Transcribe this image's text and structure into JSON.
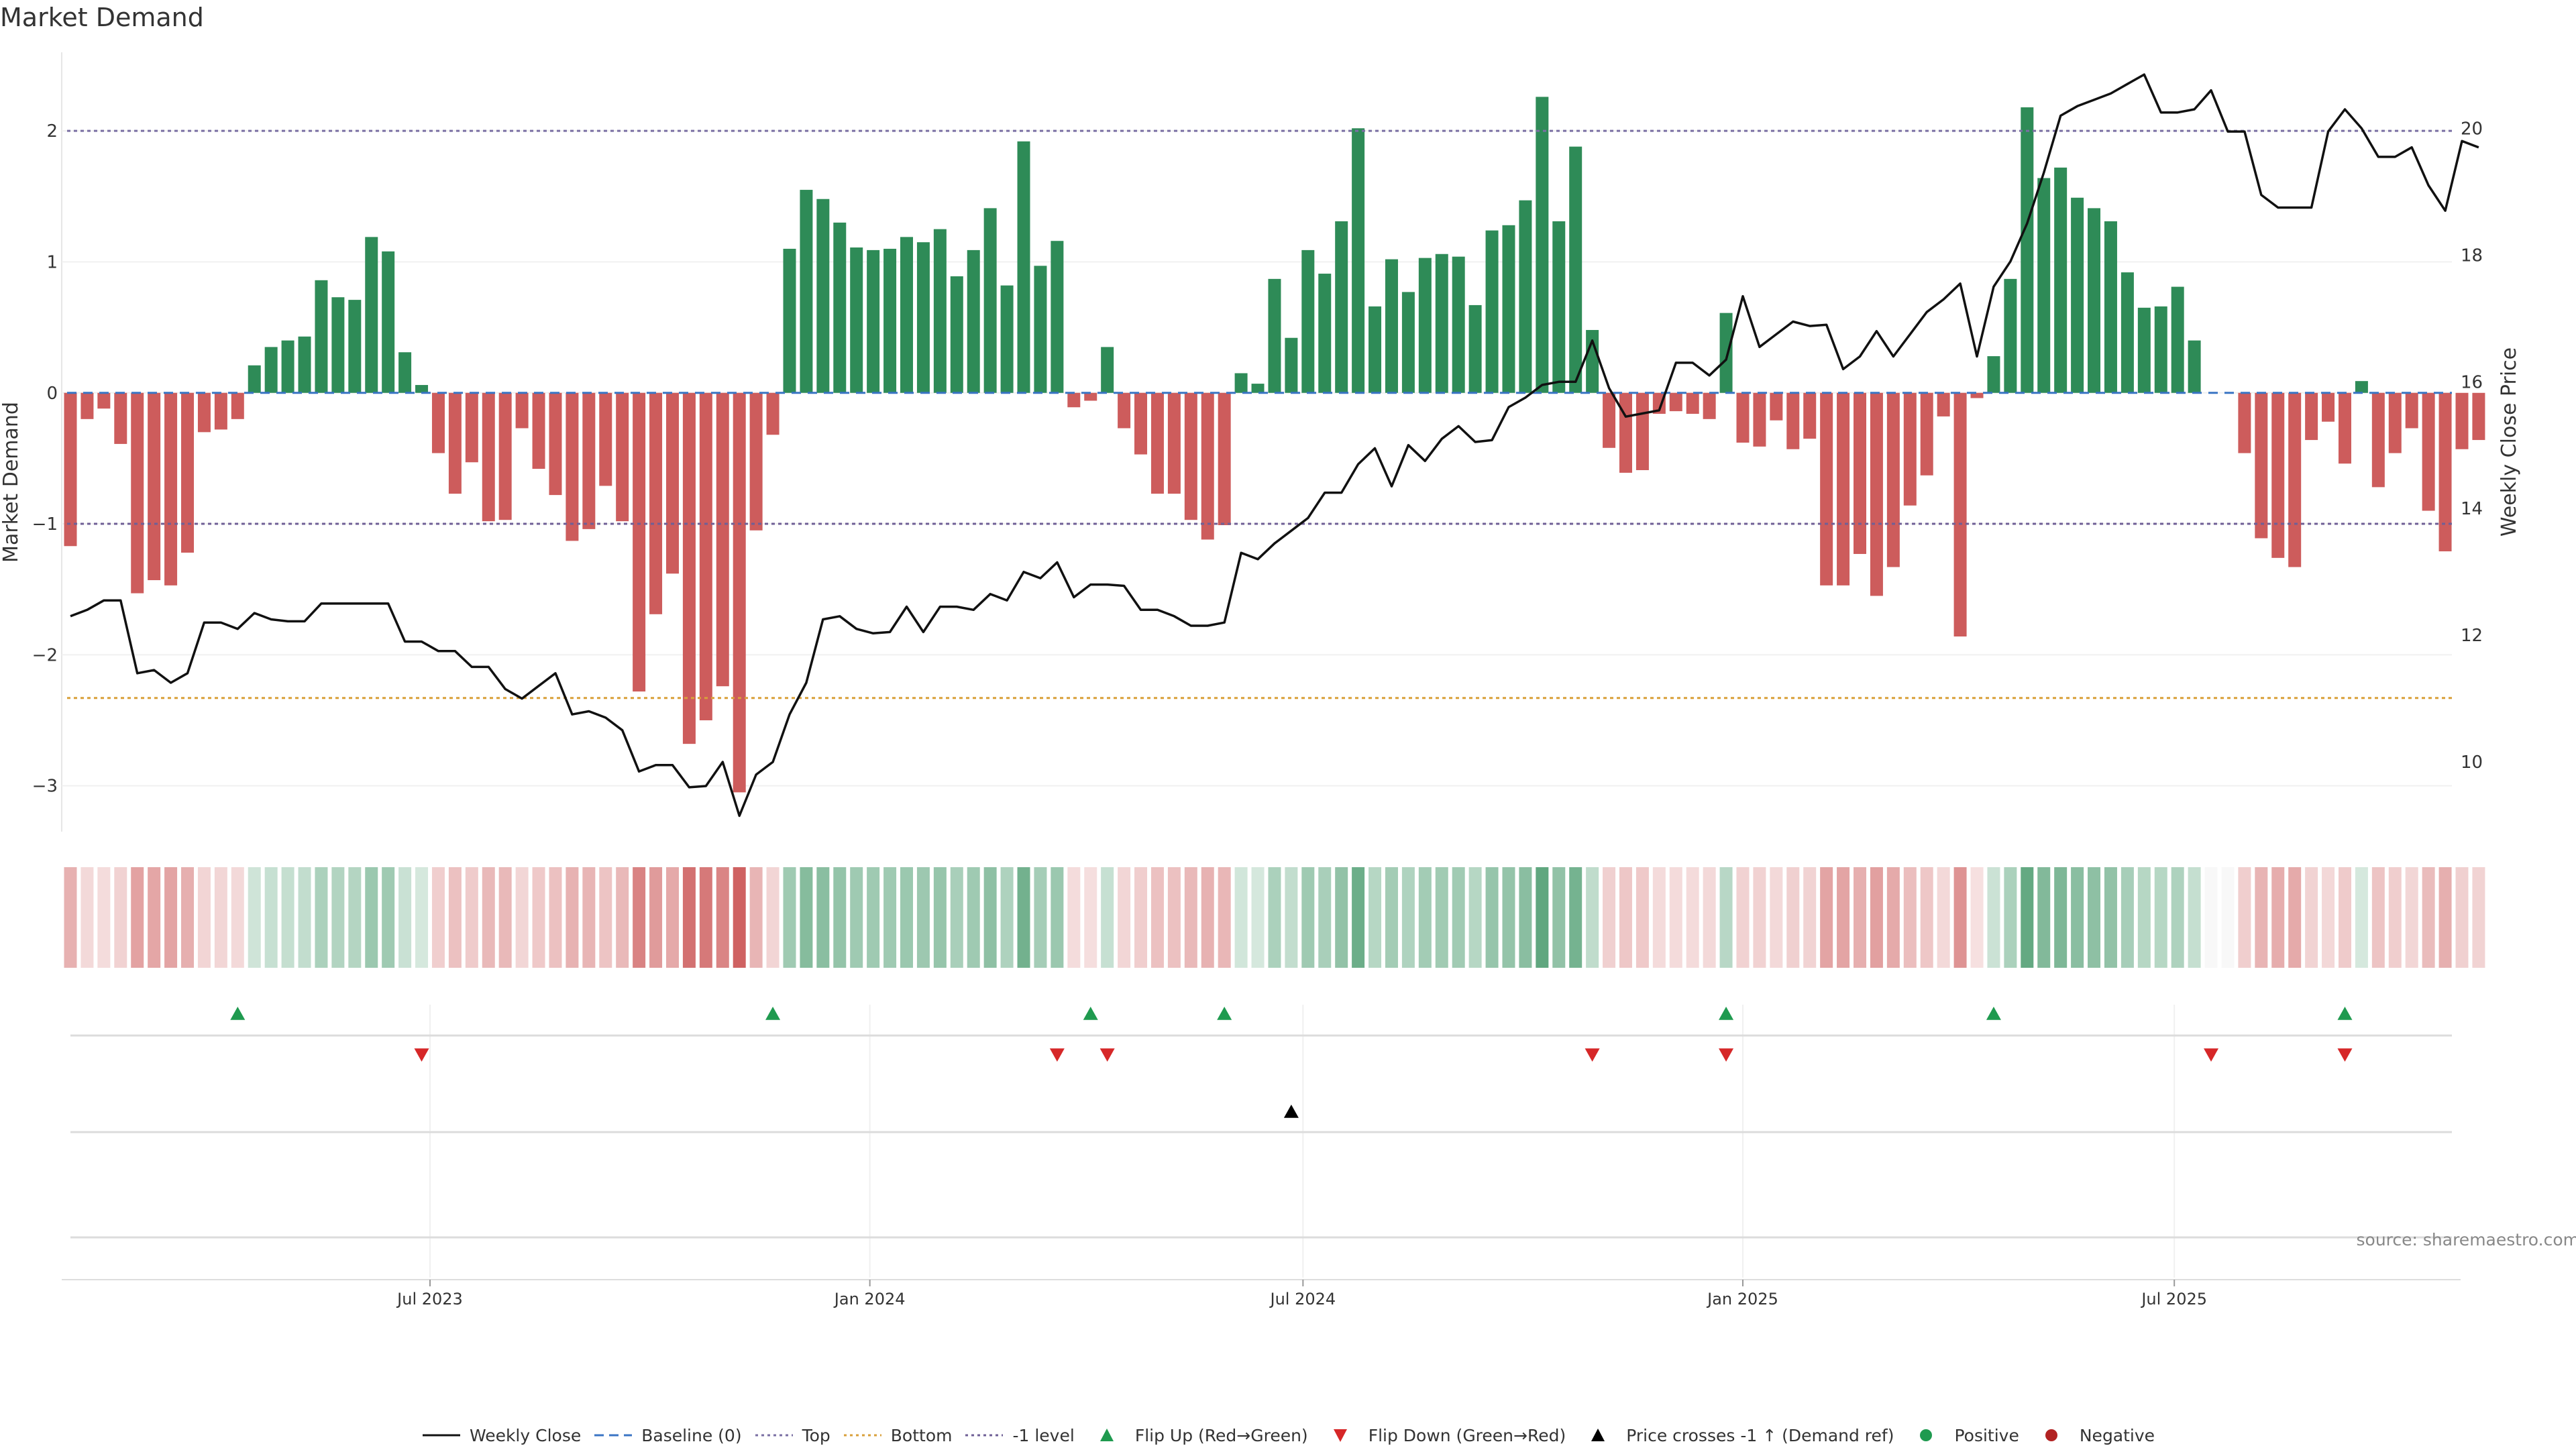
{
  "title": "Market Demand",
  "source": "source: sharemaestro.com",
  "chart_data": {
    "type": "bar",
    "y_left_label": "Market Demand",
    "y_right_label": "Weekly Close Price",
    "y_left_range": [
      -3.35,
      2.6
    ],
    "y_right_range": [
      8.9,
      21.2
    ],
    "y_left_ticks": [
      -3,
      -2,
      -1,
      0,
      1,
      2
    ],
    "y_right_ticks": [
      10,
      12,
      14,
      16,
      18,
      20
    ],
    "x_ticks": [
      {
        "label": "Jul 2023",
        "index": 21.5
      },
      {
        "label": "Jan 2024",
        "index": 47.8
      },
      {
        "label": "Jul 2024",
        "index": 73.7
      },
      {
        "label": "Jan 2025",
        "index": 100.0
      },
      {
        "label": "Jul 2025",
        "index": 125.8
      }
    ],
    "reference_lines": {
      "top": 2.0,
      "bottom": -2.33,
      "minus_one": -1.0,
      "baseline": 0
    },
    "demand": [
      -1.17,
      -0.2,
      -0.12,
      -0.39,
      -1.53,
      -1.43,
      -1.47,
      -1.22,
      -0.3,
      -0.28,
      -0.2,
      0.21,
      0.35,
      0.4,
      0.43,
      0.86,
      0.73,
      0.71,
      1.19,
      1.08,
      0.31,
      0.06,
      -0.46,
      -0.77,
      -0.53,
      -0.98,
      -0.97,
      -0.27,
      -0.58,
      -0.78,
      -1.13,
      -1.04,
      -0.71,
      -0.98,
      -2.28,
      -1.69,
      -1.38,
      -2.68,
      -2.5,
      -2.24,
      -3.05,
      -1.05,
      -0.32,
      1.1,
      1.55,
      1.48,
      1.3,
      1.11,
      1.09,
      1.1,
      1.19,
      1.15,
      1.25,
      0.89,
      1.09,
      1.41,
      0.82,
      1.92,
      0.97,
      1.16,
      -0.11,
      -0.06,
      0.35,
      -0.27,
      -0.47,
      -0.77,
      -0.77,
      -0.97,
      -1.12,
      -1.01,
      0.15,
      0.07,
      0.87,
      0.42,
      1.09,
      0.91,
      1.31,
      2.02,
      0.66,
      1.02,
      0.77,
      1.03,
      1.06,
      1.04,
      0.67,
      1.24,
      1.28,
      1.47,
      2.26,
      1.31,
      1.88,
      0.48,
      -0.42,
      -0.61,
      -0.59,
      -0.16,
      -0.14,
      -0.16,
      -0.2,
      0.61,
      -0.38,
      -0.41,
      -0.21,
      -0.43,
      -0.35,
      -1.47,
      -1.47,
      -1.23,
      -1.55,
      -1.33,
      -0.86,
      -0.63,
      -0.18,
      -1.86,
      -0.04,
      0.28,
      0.87,
      2.18,
      1.64,
      1.72,
      1.49,
      1.41,
      1.31,
      0.92,
      0.65,
      0.66,
      0.81,
      0.4,
      0.0,
      0.0,
      -0.46,
      -1.11,
      -1.26,
      -1.33,
      -0.36,
      -0.22,
      -0.54,
      0.09,
      -0.72,
      -0.46,
      -0.27,
      -0.9,
      -1.21,
      -0.43,
      -0.36
    ],
    "weekly_close": [
      12.3,
      12.4,
      12.55,
      12.55,
      11.4,
      11.45,
      11.25,
      11.4,
      12.2,
      12.2,
      12.1,
      12.35,
      12.25,
      12.22,
      12.22,
      12.5,
      12.5,
      12.5,
      12.5,
      12.5,
      11.9,
      11.9,
      11.75,
      11.75,
      11.5,
      11.5,
      11.15,
      11.0,
      11.2,
      11.4,
      10.75,
      10.8,
      10.7,
      10.5,
      9.85,
      9.95,
      9.95,
      9.6,
      9.62,
      10.0,
      9.15,
      9.8,
      10.0,
      10.75,
      11.25,
      12.25,
      12.3,
      12.1,
      12.03,
      12.05,
      12.45,
      12.05,
      12.45,
      12.45,
      12.4,
      12.65,
      12.55,
      13.0,
      12.9,
      13.15,
      12.6,
      12.8,
      12.8,
      12.78,
      12.4,
      12.4,
      12.3,
      12.15,
      12.15,
      12.2,
      13.3,
      13.2,
      13.45,
      13.65,
      13.85,
      14.25,
      14.25,
      14.7,
      14.95,
      14.35,
      15.0,
      14.75,
      15.1,
      15.3,
      15.05,
      15.08,
      15.6,
      15.75,
      15.95,
      16.0,
      16.0,
      16.65,
      15.9,
      15.45,
      15.5,
      15.55,
      16.3,
      16.3,
      16.1,
      16.35,
      17.35,
      16.55,
      16.75,
      16.95,
      16.88,
      16.9,
      16.2,
      16.4,
      16.8,
      16.4,
      16.75,
      17.1,
      17.3,
      17.55,
      16.4,
      17.5,
      17.9,
      18.5,
      19.3,
      20.2,
      20.35,
      20.45,
      20.55,
      20.7,
      20.85,
      20.25,
      20.25,
      20.3,
      20.6,
      19.95,
      19.95,
      18.95,
      18.75,
      18.75,
      18.75,
      19.95,
      20.3,
      20.0,
      19.55,
      19.55,
      19.7,
      19.1,
      18.7,
      19.8,
      19.7
    ],
    "signal_rows": {
      "flip_up": [
        10,
        42,
        61,
        69,
        99,
        115,
        136
      ],
      "flip_down": [
        21,
        59,
        62,
        91,
        99,
        128,
        136
      ],
      "price_cross": [
        73
      ]
    }
  },
  "legend": [
    {
      "label": "Weekly Close",
      "icon": "solid-line",
      "color": "#111111"
    },
    {
      "label": "Baseline (0)",
      "icon": "dashed-line",
      "color": "#3a75c4"
    },
    {
      "label": "Top",
      "icon": "dotted-line",
      "color": "#7a6fa3"
    },
    {
      "label": "Bottom",
      "icon": "dotted-line",
      "color": "#d9a03a"
    },
    {
      "label": "-1 level",
      "icon": "dotted-line",
      "color": "#6f5f96"
    },
    {
      "label": "Flip Up (Red→Green)",
      "icon": "triangle-up",
      "color": "#1f9a4f"
    },
    {
      "label": "Flip Down (Green→Red)",
      "icon": "triangle-down",
      "color": "#d62728"
    },
    {
      "label": "Price crosses -1 ↑ (Demand ref)",
      "icon": "triangle-up",
      "color": "#000000"
    },
    {
      "label": "Positive",
      "icon": "circle",
      "color": "#1f9a4f"
    },
    {
      "label": "Negative",
      "icon": "circle",
      "color": "#b22222"
    }
  ],
  "colors": {
    "positive": "#2e8b57",
    "negative": "#cd5c5c",
    "price": "#111111"
  }
}
